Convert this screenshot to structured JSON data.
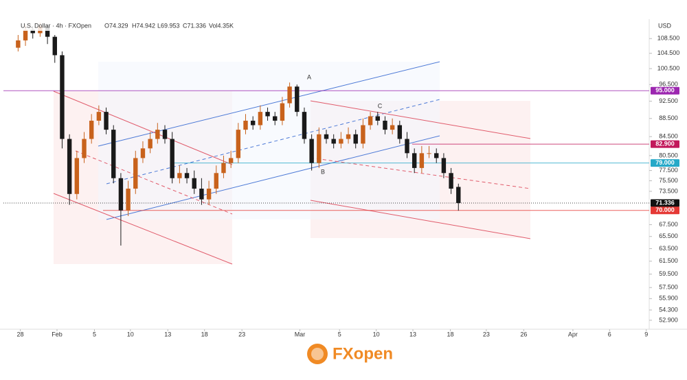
{
  "chart_data": {
    "type": "candlestick",
    "header": "U.S. Dollar · 4h · FXOpen",
    "ohlc_labels": [
      "O74.329",
      "H74.942",
      "L69.953",
      "C71.336",
      "Vol4.35K"
    ],
    "currency": "USD",
    "logo": "FXopen",
    "log_scale": true,
    "up_color": "#c8621c",
    "down_color": "#1a1a1a",
    "x": [
      2,
      3,
      4,
      5,
      6,
      7,
      8,
      9,
      10,
      11,
      12,
      13,
      14,
      15,
      16,
      17,
      18,
      19,
      20,
      21,
      22,
      23,
      24,
      25,
      26,
      27,
      28,
      29,
      30,
      31,
      32,
      33,
      34,
      35,
      36,
      37,
      38,
      39,
      40,
      41,
      42,
      43,
      44,
      45,
      46,
      47,
      48,
      49,
      50,
      51,
      52,
      53,
      54,
      55,
      56,
      57,
      58,
      59,
      60,
      61,
      62
    ],
    "open": [
      106,
      108,
      111,
      110,
      112,
      109,
      104,
      84,
      73,
      80,
      84,
      88,
      90,
      86,
      76,
      70,
      74,
      80,
      82,
      84,
      86,
      84,
      76,
      77,
      76,
      74,
      72,
      74,
      77,
      79,
      80,
      86,
      88,
      87,
      90,
      89,
      88,
      92,
      96,
      90,
      84,
      79,
      85,
      84,
      83,
      84,
      85,
      83,
      87,
      89,
      88,
      86,
      87,
      84,
      81,
      78,
      81,
      81,
      80,
      77,
      74.329
    ],
    "high": [
      109.5,
      112.5,
      112,
      113,
      112.5,
      109.5,
      105,
      85,
      81.5,
      85.5,
      89.5,
      91.5,
      91,
      87,
      77,
      75.5,
      81.5,
      83.5,
      85.5,
      87.5,
      87,
      85.5,
      78.5,
      78,
      77.5,
      76,
      75.5,
      78.5,
      80.5,
      81.5,
      87.5,
      89.5,
      89,
      91.5,
      91,
      90,
      93.5,
      97,
      96.5,
      91,
      85,
      86.5,
      86,
      85,
      85.5,
      86.5,
      86,
      88.5,
      90,
      90,
      89,
      88.5,
      88,
      85.5,
      82,
      82.5,
      82.5,
      82,
      81,
      78,
      74.942
    ],
    "low": [
      105,
      106.5,
      108.5,
      109,
      107,
      102,
      82,
      71,
      72,
      79,
      83,
      87,
      85,
      75,
      64,
      69,
      73,
      79,
      81,
      83,
      83,
      75,
      75,
      75,
      73,
      71,
      71,
      73,
      76,
      78,
      79,
      85,
      86,
      86,
      88,
      87,
      87,
      91,
      89,
      83,
      77.5,
      78,
      83,
      82,
      82,
      83,
      82,
      82,
      86,
      87,
      85,
      85,
      83,
      80,
      77,
      77,
      80,
      79,
      76,
      73,
      69.953
    ],
    "close": [
      108,
      111,
      110,
      112,
      109,
      104,
      84,
      73,
      80,
      84,
      88,
      90,
      86,
      76,
      70,
      74,
      80,
      82,
      84,
      86,
      84,
      76,
      77,
      76,
      74,
      72,
      74,
      77,
      79,
      80,
      86,
      88,
      87,
      90,
      89,
      88,
      92,
      96,
      90,
      84,
      79,
      85,
      84,
      83,
      84,
      85,
      83,
      87,
      89,
      88,
      86,
      87,
      84,
      81,
      78,
      81,
      81,
      80,
      77,
      74,
      71.336
    ],
    "xlim": [
      0,
      88
    ],
    "xticks": [
      {
        "value": 2.3,
        "label": "28"
      },
      {
        "value": 7.3,
        "label": "Feb"
      },
      {
        "value": 12.4,
        "label": "5"
      },
      {
        "value": 17.3,
        "label": "10"
      },
      {
        "value": 22.4,
        "label": "13"
      },
      {
        "value": 27.4,
        "label": "18"
      },
      {
        "value": 32.5,
        "label": "23"
      },
      {
        "value": 40.4,
        "label": "Mar"
      },
      {
        "value": 45.8,
        "label": "5"
      },
      {
        "value": 50.8,
        "label": "10"
      },
      {
        "value": 55.8,
        "label": "13"
      },
      {
        "value": 60.9,
        "label": "18"
      },
      {
        "value": 65.8,
        "label": "23"
      },
      {
        "value": 70.9,
        "label": "26"
      },
      {
        "value": 77.6,
        "label": "Apr"
      },
      {
        "value": 82.6,
        "label": "6"
      },
      {
        "value": 87.6,
        "label": "9"
      }
    ],
    "ylim": [
      51.7,
      113.6
    ],
    "yticks": [
      {
        "value": 108.5,
        "label": "108.500"
      },
      {
        "value": 104.5,
        "label": "104.500"
      },
      {
        "value": 100.5,
        "label": "100.500"
      },
      {
        "value": 96.5,
        "label": "96.500"
      },
      {
        "value": 92.5,
        "label": "92.500"
      },
      {
        "value": 88.5,
        "label": "88.500"
      },
      {
        "value": 84.5,
        "label": "84.500"
      },
      {
        "value": 80.5,
        "label": "80.500"
      },
      {
        "value": 77.5,
        "label": "77.500"
      },
      {
        "value": 75.5,
        "label": "75.500"
      },
      {
        "value": 73.5,
        "label": "73.500"
      },
      {
        "value": 67.5,
        "label": "67.500"
      },
      {
        "value": 65.5,
        "label": "65.500"
      },
      {
        "value": 63.5,
        "label": "63.500"
      },
      {
        "value": 61.5,
        "label": "61.500"
      },
      {
        "value": 59.5,
        "label": "59.500"
      },
      {
        "value": 57.5,
        "label": "57.500"
      },
      {
        "value": 55.9,
        "label": "55.900"
      },
      {
        "value": 54.3,
        "label": "54.300"
      },
      {
        "value": 52.9,
        "label": "52.900"
      }
    ],
    "levels": [
      {
        "value": 95,
        "label": "95.000",
        "color": "#9c27b0"
      },
      {
        "value": 82.9,
        "label": "82.900",
        "color": "#c2185b"
      },
      {
        "value": 79,
        "label": "79.000",
        "color": "#26a9c8"
      },
      {
        "value": 71.336,
        "label": "71.336",
        "color": "#111111"
      },
      {
        "value": 70,
        "label": "70.000",
        "color": "#e53935"
      }
    ],
    "annotations": [
      "A",
      "B",
      "C"
    ]
  }
}
